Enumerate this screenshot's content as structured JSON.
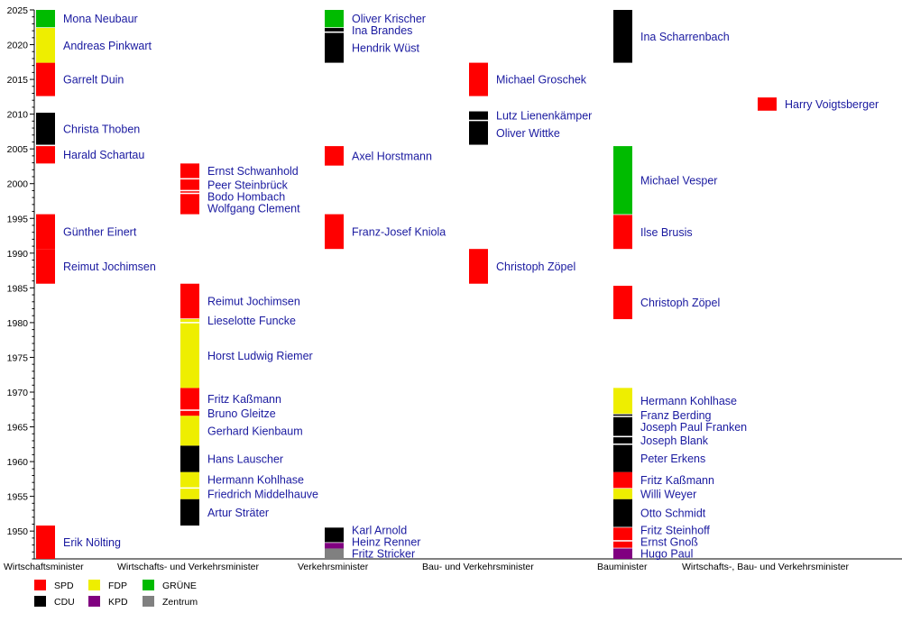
{
  "chart_data": {
    "type": "timeline",
    "title": "",
    "xlabel": "",
    "ylabel": "",
    "ylim": [
      1946,
      2025
    ],
    "yticks": [
      1950,
      1955,
      1960,
      1965,
      1970,
      1975,
      1980,
      1985,
      1990,
      1995,
      2000,
      2005,
      2010,
      2015,
      2020,
      2025
    ],
    "grid": false,
    "legend": "bottom-left",
    "categories": [
      "Wirtschaftsminister",
      "Wirtschafts- und Verkehrsminister",
      "Verkehrsminister",
      "Bau- und Verkehrsminister",
      "Bauminister",
      "Wirtschafts-, Bau- und Verkehrsminister"
    ],
    "parties": [
      {
        "key": "SPD",
        "name": "SPD",
        "color": "#ff0000"
      },
      {
        "key": "CDU",
        "name": "CDU",
        "color": "#000000"
      },
      {
        "key": "FDP",
        "name": "FDP",
        "color": "#eeee00"
      },
      {
        "key": "KPD",
        "name": "KPD",
        "color": "#800080"
      },
      {
        "key": "GRUENE",
        "name": "GRÜNE",
        "color": "#00bb00"
      },
      {
        "key": "Zentrum",
        "name": "Zentrum",
        "color": "#808080"
      }
    ],
    "terms": [
      {
        "col": 0,
        "name": "Erik Nölting",
        "party": "SPD",
        "start": 1946.0,
        "end": 1950.8
      },
      {
        "col": 0,
        "name": "Reimut Jochimsen",
        "party": "SPD",
        "start": 1985.6,
        "end": 1990.6
      },
      {
        "col": 0,
        "name": "Günther Einert",
        "party": "SPD",
        "start": 1990.6,
        "end": 1995.6
      },
      {
        "col": 0,
        "name": "Harald Schartau",
        "party": "SPD",
        "start": 2002.9,
        "end": 2005.4
      },
      {
        "col": 0,
        "name": "Christa Thoben",
        "party": "CDU",
        "start": 2005.6,
        "end": 2010.2
      },
      {
        "col": 0,
        "name": "Garrelt Duin",
        "party": "SPD",
        "start": 2012.6,
        "end": 2017.4
      },
      {
        "col": 0,
        "name": "Andreas Pinkwart",
        "party": "FDP",
        "start": 2017.4,
        "end": 2022.4
      },
      {
        "col": 0,
        "name": "Mona Neubaur",
        "party": "GRUENE",
        "start": 2022.5,
        "end": 2025.0
      },
      {
        "col": 1,
        "name": "Artur Sträter",
        "party": "CDU",
        "start": 1950.8,
        "end": 1954.6
      },
      {
        "col": 1,
        "name": "Friedrich Middelhauve",
        "party": "FDP",
        "start": 1954.6,
        "end": 1956.1
      },
      {
        "col": 1,
        "name": "Hermann Kohlhase",
        "party": "FDP",
        "start": 1956.3,
        "end": 1958.5
      },
      {
        "col": 1,
        "name": "Hans Lauscher",
        "party": "CDU",
        "start": 1958.5,
        "end": 1962.3
      },
      {
        "col": 1,
        "name": "Gerhard Kienbaum",
        "party": "FDP",
        "start": 1962.3,
        "end": 1966.6
      },
      {
        "col": 1,
        "name": "Bruno Gleitze",
        "party": "SPD",
        "start": 1966.6,
        "end": 1967.3
      },
      {
        "col": 1,
        "name": "Fritz Kaßmann",
        "party": "SPD",
        "start": 1967.5,
        "end": 1970.6
      },
      {
        "col": 1,
        "name": "Horst Ludwig Riemer",
        "party": "FDP",
        "start": 1970.6,
        "end": 1979.9
      },
      {
        "col": 1,
        "name": "Lieselotte Funcke",
        "party": "FDP",
        "start": 1980.1,
        "end": 1980.5
      },
      {
        "col": 1,
        "name": "Reimut Jochimsen",
        "party": "SPD",
        "start": 1980.6,
        "end": 1985.6
      },
      {
        "col": 1,
        "name": "Wolfgang Clement",
        "party": "SPD",
        "start": 1995.6,
        "end": 1998.5
      },
      {
        "col": 1,
        "name": "Bodo Hombach",
        "party": "SPD",
        "start": 1998.7,
        "end": 1998.9
      },
      {
        "col": 1,
        "name": "Peer Steinbrück",
        "party": "SPD",
        "start": 1999.1,
        "end": 2000.6
      },
      {
        "col": 1,
        "name": "Ernst Schwanhold",
        "party": "SPD",
        "start": 2000.8,
        "end": 2002.9
      },
      {
        "col": 2,
        "name": "Fritz Stricker",
        "party": "Zentrum",
        "start": 1946.0,
        "end": 1947.5
      },
      {
        "col": 2,
        "name": "Heinz Renner",
        "party": "KPD",
        "start": 1947.5,
        "end": 1948.3
      },
      {
        "col": 2,
        "name": "Karl Arnold",
        "party": "CDU",
        "start": 1948.4,
        "end": 1950.5
      },
      {
        "col": 2,
        "name": "Franz-Josef Kniola",
        "party": "SPD",
        "start": 1990.6,
        "end": 1995.6
      },
      {
        "col": 2,
        "name": "Axel Horstmann",
        "party": "SPD",
        "start": 2002.6,
        "end": 2005.4
      },
      {
        "col": 2,
        "name": "Hendrik Wüst",
        "party": "CDU",
        "start": 2017.4,
        "end": 2021.7
      },
      {
        "col": 2,
        "name": "Ina Brandes",
        "party": "CDU",
        "start": 2021.9,
        "end": 2022.4
      },
      {
        "col": 2,
        "name": "Oliver Krischer",
        "party": "GRUENE",
        "start": 2022.5,
        "end": 2025.0
      },
      {
        "col": 3,
        "name": "Christoph Zöpel",
        "party": "SPD",
        "start": 1985.6,
        "end": 1990.6
      },
      {
        "col": 3,
        "name": "Oliver Wittke",
        "party": "CDU",
        "start": 2005.6,
        "end": 2009.0
      },
      {
        "col": 3,
        "name": "Lutz Lienenkämper",
        "party": "CDU",
        "start": 2009.2,
        "end": 2010.4
      },
      {
        "col": 3,
        "name": "Michael Groschek",
        "party": "SPD",
        "start": 2012.6,
        "end": 2017.4
      },
      {
        "col": 4,
        "name": "Hugo Paul",
        "party": "KPD",
        "start": 1946.0,
        "end": 1947.5
      },
      {
        "col": 4,
        "name": "Ernst Gnoß",
        "party": "SPD",
        "start": 1947.6,
        "end": 1948.5
      },
      {
        "col": 4,
        "name": "Fritz Steinhoff",
        "party": "SPD",
        "start": 1948.7,
        "end": 1950.5
      },
      {
        "col": 4,
        "name": "Otto Schmidt",
        "party": "CDU",
        "start": 1950.6,
        "end": 1954.6
      },
      {
        "col": 4,
        "name": "Willi Weyer",
        "party": "FDP",
        "start": 1954.6,
        "end": 1956.1
      },
      {
        "col": 4,
        "name": "Fritz Kaßmann",
        "party": "SPD",
        "start": 1956.2,
        "end": 1958.5
      },
      {
        "col": 4,
        "name": "Peter Erkens",
        "party": "CDU",
        "start": 1958.5,
        "end": 1962.4
      },
      {
        "col": 4,
        "name": "Joseph Blank",
        "party": "CDU",
        "start": 1962.6,
        "end": 1963.5
      },
      {
        "col": 4,
        "name": "Joseph Paul Franken",
        "party": "CDU",
        "start": 1963.7,
        "end": 1966.4
      },
      {
        "col": 4,
        "name": "Franz Berding",
        "party": "CDU",
        "start": 1966.6,
        "end": 1966.8
      },
      {
        "col": 4,
        "name": "Hermann Kohlhase",
        "party": "FDP",
        "start": 1966.9,
        "end": 1970.6
      },
      {
        "col": 4,
        "name": "Christoph Zöpel",
        "party": "SPD",
        "start": 1980.5,
        "end": 1985.3
      },
      {
        "col": 4,
        "name": "Ilse Brusis",
        "party": "SPD",
        "start": 1990.6,
        "end": 1995.5
      },
      {
        "col": 4,
        "name": "Michael Vesper",
        "party": "GRUENE",
        "start": 1995.6,
        "end": 2005.4
      },
      {
        "col": 4,
        "name": "Ina Scharrenbach",
        "party": "CDU",
        "start": 2017.4,
        "end": 2025.0
      },
      {
        "col": 5,
        "name": "Harry Voigtsberger",
        "party": "SPD",
        "start": 2010.5,
        "end": 2012.4
      }
    ]
  }
}
